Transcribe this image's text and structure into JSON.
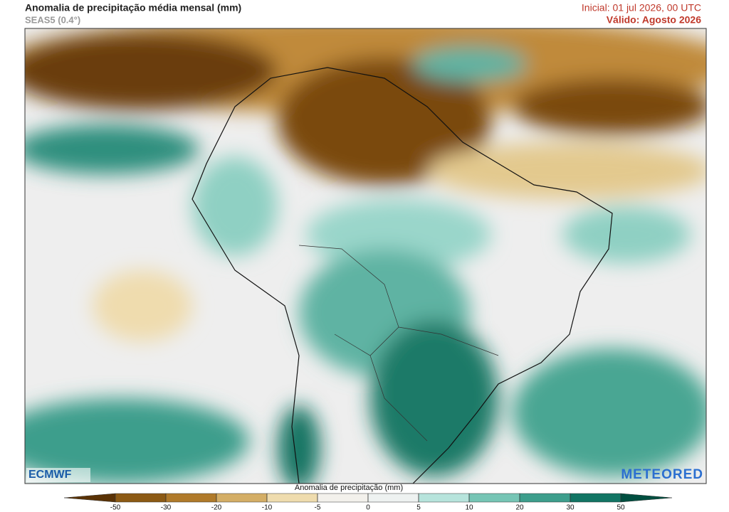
{
  "header": {
    "title": "Anomalia de precipitação média mensal (mm)",
    "subtitle": "SEAS5 (0.4°)",
    "initial": "Inicial: 01 jul 2026, 00 UTC",
    "valid": "Válido: Agosto 2026"
  },
  "colorbar": {
    "label": "Anomalia de precipitação (mm)",
    "ticks": [
      -50,
      -30,
      -20,
      -10,
      -5,
      0,
      5,
      10,
      20,
      30,
      50
    ],
    "colors": [
      "#5a3205",
      "#8c5a14",
      "#b07a2a",
      "#d4ae66",
      "#efdcae",
      "#f3f1ec",
      "#eef2f1",
      "#b7e4dc",
      "#76c5b5",
      "#3d9e8c",
      "#127564",
      "#004f40"
    ]
  },
  "logos": {
    "left": "ECMWF",
    "right": "METEORED"
  }
}
